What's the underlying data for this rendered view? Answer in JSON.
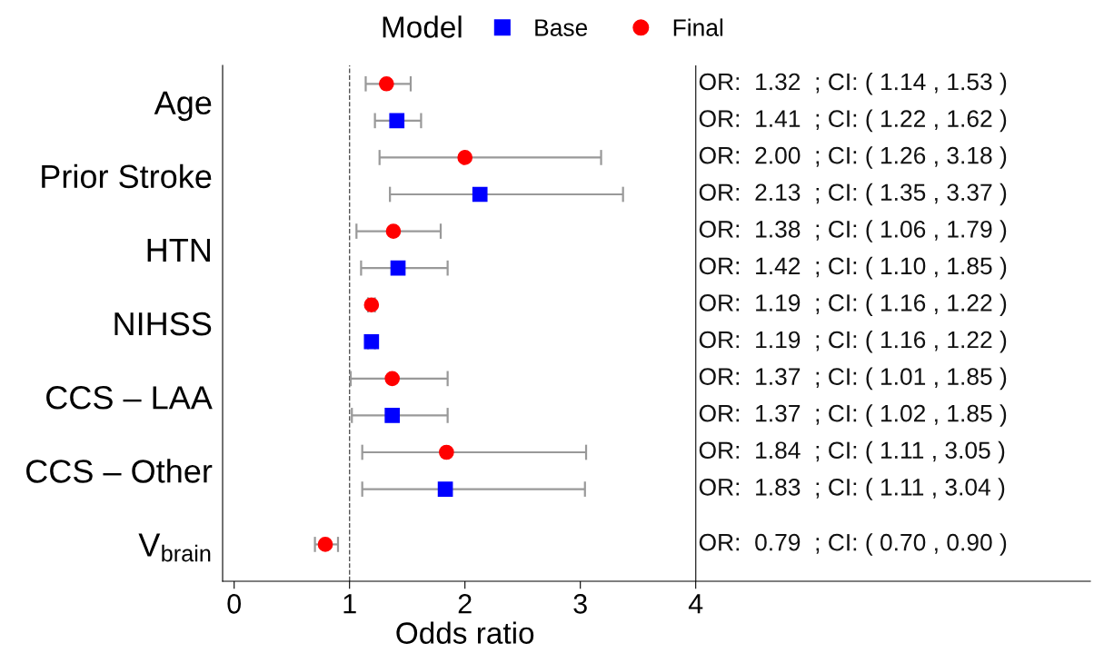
{
  "chart_data": {
    "type": "scatter",
    "orientation": "horizontal",
    "xlabel": "Odds ratio",
    "legend_title": "Model",
    "legend": "top",
    "categories": [
      "Age",
      "Prior Stroke",
      "HTN",
      "NIHSS",
      "CCS – LAA",
      "CCS – Other",
      "V$_{brain}$"
    ],
    "xlim": [
      -0.1,
      7.42
    ],
    "xticks": [
      0,
      1,
      2,
      3,
      4
    ],
    "grid": false,
    "ref_lines": [
      {
        "axis": "x",
        "value": 1,
        "line_style": "dashed",
        "color": "#555555"
      },
      {
        "axis": "x",
        "value": 4,
        "line_style": "solid",
        "color": "#333333"
      }
    ],
    "series": [
      {
        "name": "Final",
        "color": "#ff0000",
        "marker": "circle",
        "values": [
          1.32,
          2.0,
          1.38,
          1.19,
          1.37,
          1.84,
          0.79
        ],
        "errors": [
          [
            1.14,
            1.53
          ],
          [
            1.26,
            3.18
          ],
          [
            1.06,
            1.79
          ],
          [
            1.16,
            1.22
          ],
          [
            1.01,
            1.85
          ],
          [
            1.11,
            3.05
          ],
          [
            0.7,
            0.9
          ]
        ]
      },
      {
        "name": "Base",
        "color": "#0000ff",
        "marker": "square",
        "values": [
          1.41,
          2.13,
          1.42,
          1.19,
          1.37,
          1.83,
          null
        ],
        "errors": [
          [
            1.22,
            1.62
          ],
          [
            1.35,
            3.37
          ],
          [
            1.1,
            1.85
          ],
          [
            1.16,
            1.22
          ],
          [
            1.02,
            1.85
          ],
          [
            1.11,
            3.04
          ],
          null
        ]
      }
    ],
    "annotations": [
      "OR:  1.32  ; CI: ( 1.14 , 1.53 )",
      "OR:  1.41  ; CI: ( 1.22 , 1.62 )",
      "OR:  2.00  ; CI: ( 1.26 , 3.18 )",
      "OR:  2.13  ; CI: ( 1.35 , 3.37 )",
      "OR:  1.38  ; CI: ( 1.06 , 1.79 )",
      "OR:  1.42  ; CI: ( 1.10 , 1.85 )",
      "OR:  1.19  ; CI: ( 1.16 , 1.22 )",
      "OR:  1.19  ; CI: ( 1.16 , 1.22 )",
      "OR:  1.37  ; CI: ( 1.01 , 1.85 )",
      "OR:  1.37  ; CI: ( 1.02 , 1.85 )",
      "OR:  1.84  ; CI: ( 1.11 , 3.05 )",
      "OR:  1.83  ; CI: ( 1.11 , 3.04 )",
      "OR:  0.79  ; CI: ( 0.70 , 0.90 )"
    ]
  }
}
